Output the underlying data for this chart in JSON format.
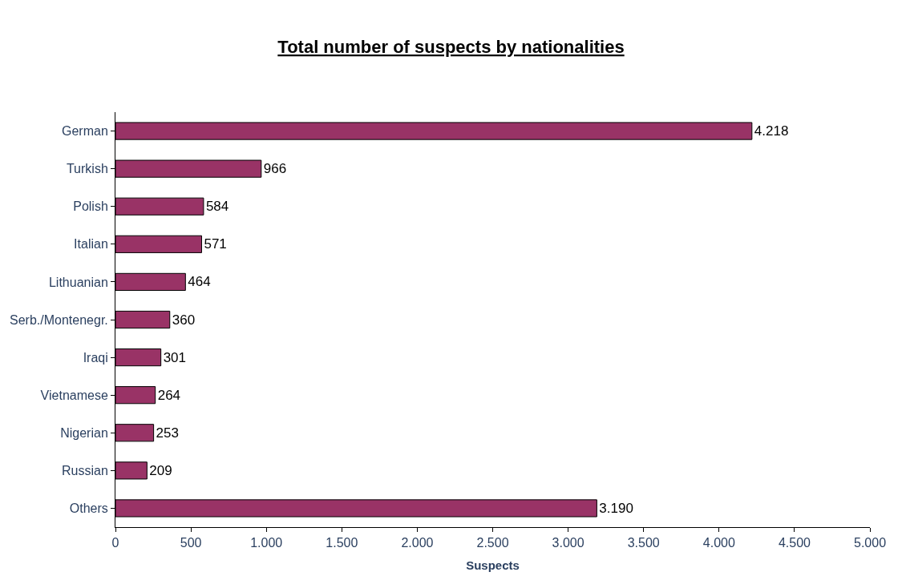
{
  "chart_data": {
    "type": "bar",
    "orientation": "horizontal",
    "title": "Total number of suspects by nationalities",
    "xlabel": "Suspects",
    "categories": [
      "German",
      "Turkish",
      "Polish",
      "Italian",
      "Lithuanian",
      "Serb./Montenegr.",
      "Iraqi",
      "Vietnamese",
      "Nigerian",
      "Russian",
      "Others"
    ],
    "values": [
      4218,
      966,
      584,
      571,
      464,
      360,
      301,
      264,
      253,
      209,
      3190
    ],
    "value_labels": [
      "4.218",
      "966",
      "584",
      "571",
      "464",
      "360",
      "301",
      "264",
      "253",
      "209",
      "3.190"
    ],
    "color": "#993366",
    "xlim": [
      0,
      5000
    ],
    "xticks": [
      0,
      500,
      {
        "value": 1000,
        "label": "1.000"
      },
      {
        "value": 1500,
        "label": "1.500"
      },
      {
        "value": 2000,
        "label": "2.000"
      },
      {
        "value": 2500,
        "label": "2.500"
      },
      {
        "value": 3000,
        "label": "3.000"
      },
      {
        "value": 3500,
        "label": "3.500"
      },
      {
        "value": 4000,
        "label": "4.000"
      },
      {
        "value": 4500,
        "label": "4.500"
      },
      {
        "value": 5000,
        "label": "5.000"
      }
    ],
    "grid": false,
    "legend": false
  }
}
